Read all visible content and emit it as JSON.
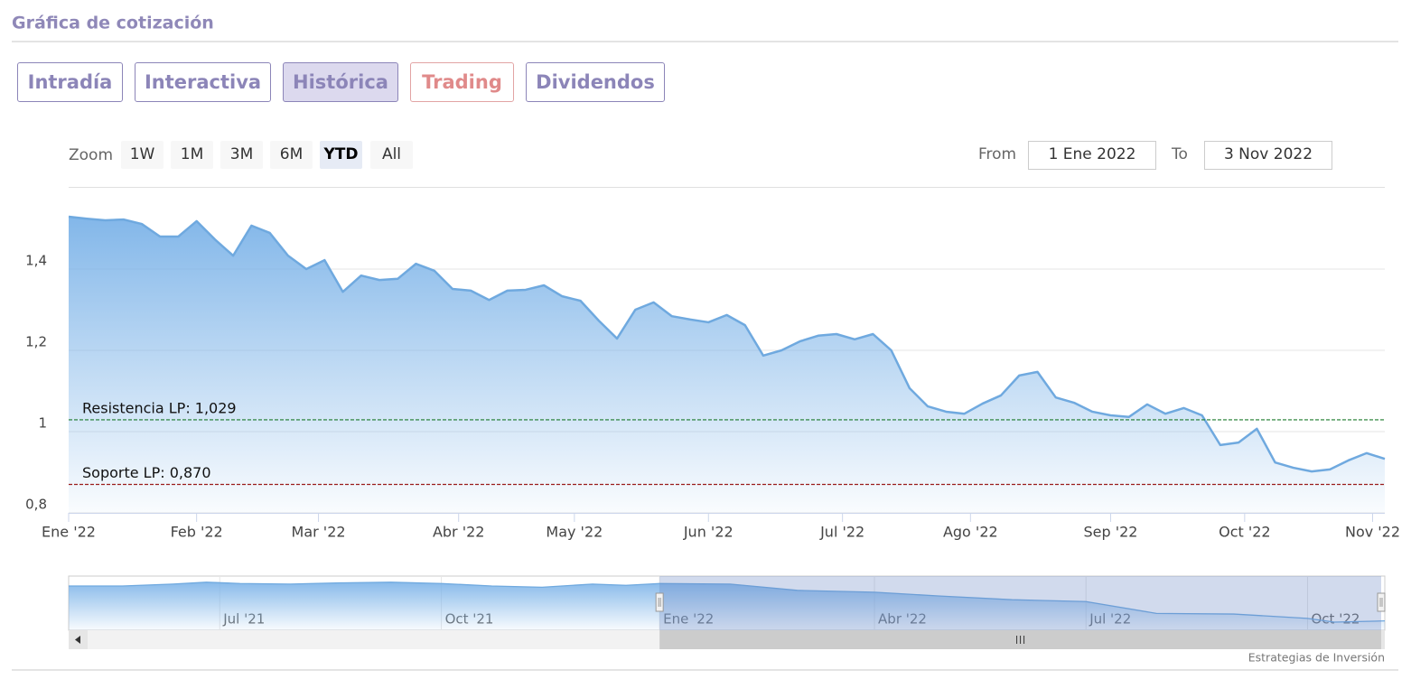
{
  "header": {
    "title": "Gráfica de cotización"
  },
  "tabs": {
    "items": [
      "Intradía",
      "Interactiva",
      "Histórica",
      "Trading",
      "Dividendos"
    ],
    "active": 2
  },
  "range_selector": {
    "zoom_label": "Zoom",
    "buttons": [
      "1W",
      "1M",
      "3M",
      "6M",
      "YTD",
      "All"
    ],
    "active": 4,
    "from_label": "From",
    "from": "1 Ene 2022",
    "to_label": "To",
    "to": "3 Nov 2022"
  },
  "credits": "Estrategias de Inversión",
  "chart_data": {
    "type": "area",
    "color": "#6fa9df",
    "grid": true,
    "x": [
      0,
      3,
      6,
      9,
      12,
      15,
      18,
      21,
      24,
      27,
      30,
      33,
      36,
      39,
      42,
      45,
      48,
      51,
      54,
      57,
      60,
      63,
      66,
      69,
      72,
      75,
      78,
      81,
      84,
      87,
      90,
      93,
      96,
      99,
      102,
      105,
      108,
      111,
      114,
      117,
      120,
      123,
      126,
      129,
      132,
      135,
      138,
      141,
      144,
      147,
      150,
      153,
      156,
      159,
      162,
      165,
      168,
      171,
      174,
      177,
      180,
      183,
      186,
      189,
      192,
      195,
      198,
      201,
      204,
      207,
      210,
      213,
      216
    ],
    "values": [
      1.529,
      1.524,
      1.52,
      1.522,
      1.511,
      1.48,
      1.48,
      1.518,
      1.473,
      1.433,
      1.507,
      1.489,
      1.433,
      1.4,
      1.422,
      1.344,
      1.384,
      1.373,
      1.376,
      1.413,
      1.396,
      1.351,
      1.347,
      1.324,
      1.347,
      1.349,
      1.36,
      1.333,
      1.322,
      1.273,
      1.229,
      1.3,
      1.318,
      1.284,
      1.276,
      1.269,
      1.287,
      1.262,
      1.187,
      1.2,
      1.222,
      1.236,
      1.24,
      1.227,
      1.24,
      1.2,
      1.107,
      1.062,
      1.049,
      1.044,
      1.069,
      1.089,
      1.138,
      1.147,
      1.084,
      1.071,
      1.049,
      1.04,
      1.036,
      1.067,
      1.044,
      1.058,
      1.04,
      0.967,
      0.973,
      1.007,
      0.924,
      0.911,
      0.902,
      0.907,
      0.929,
      0.947,
      0.933
    ],
    "xlim": [
      0,
      216
    ],
    "xticks": [
      {
        "value": 0,
        "label": "Ene '22"
      },
      {
        "value": 21,
        "label": "Feb '22"
      },
      {
        "value": 41,
        "label": "Mar '22"
      },
      {
        "value": 64,
        "label": "Abr '22"
      },
      {
        "value": 83,
        "label": "May '22"
      },
      {
        "value": 105,
        "label": "Jun '22"
      },
      {
        "value": 127,
        "label": "Jul '22"
      },
      {
        "value": 148,
        "label": "Ago '22"
      },
      {
        "value": 171,
        "label": "Sep '22"
      },
      {
        "value": 193,
        "label": "Oct '22"
      },
      {
        "value": 214,
        "label": "Nov '22"
      }
    ],
    "ylim": [
      0.8,
      1.6
    ],
    "yticks": [
      {
        "value": 0.8,
        "label": "0,8"
      },
      1,
      {
        "value": 1.2,
        "label": "1,2"
      },
      {
        "value": 1.4,
        "label": "1,4"
      }
    ],
    "reference_lines": [
      {
        "label": "Resistencia LP: 1,029",
        "value": 1.029,
        "color": "#1a7a2a"
      },
      {
        "label": "Soporte LP: 0,870",
        "value": 0.87,
        "color": "#9a1c1c"
      }
    ]
  },
  "navigator": {
    "x": [
      -176,
      -160,
      -145,
      -135,
      -125,
      -110,
      -95,
      -80,
      -65,
      -50,
      -35,
      -20,
      -10,
      0,
      21,
      41,
      64,
      83,
      105,
      127,
      148,
      171,
      193,
      201,
      216
    ],
    "values": [
      1.49,
      1.49,
      1.52,
      1.55,
      1.53,
      1.52,
      1.54,
      1.55,
      1.53,
      1.49,
      1.47,
      1.52,
      1.5,
      1.53,
      1.52,
      1.42,
      1.39,
      1.33,
      1.27,
      1.24,
      1.05,
      1.04,
      0.97,
      0.91,
      0.93
    ],
    "xlim": [
      -176,
      216
    ],
    "ylim": [
      0.78,
      1.62
    ],
    "xticks": [
      {
        "value": -131,
        "label": "Jul '21"
      },
      {
        "value": -65,
        "label": "Oct '21"
      },
      {
        "value": 0,
        "label": "Ene '22"
      },
      {
        "value": 64,
        "label": "Abr '22"
      },
      {
        "value": 127,
        "label": "Jul '22"
      },
      {
        "value": 193,
        "label": "Oct '22"
      }
    ]
  }
}
